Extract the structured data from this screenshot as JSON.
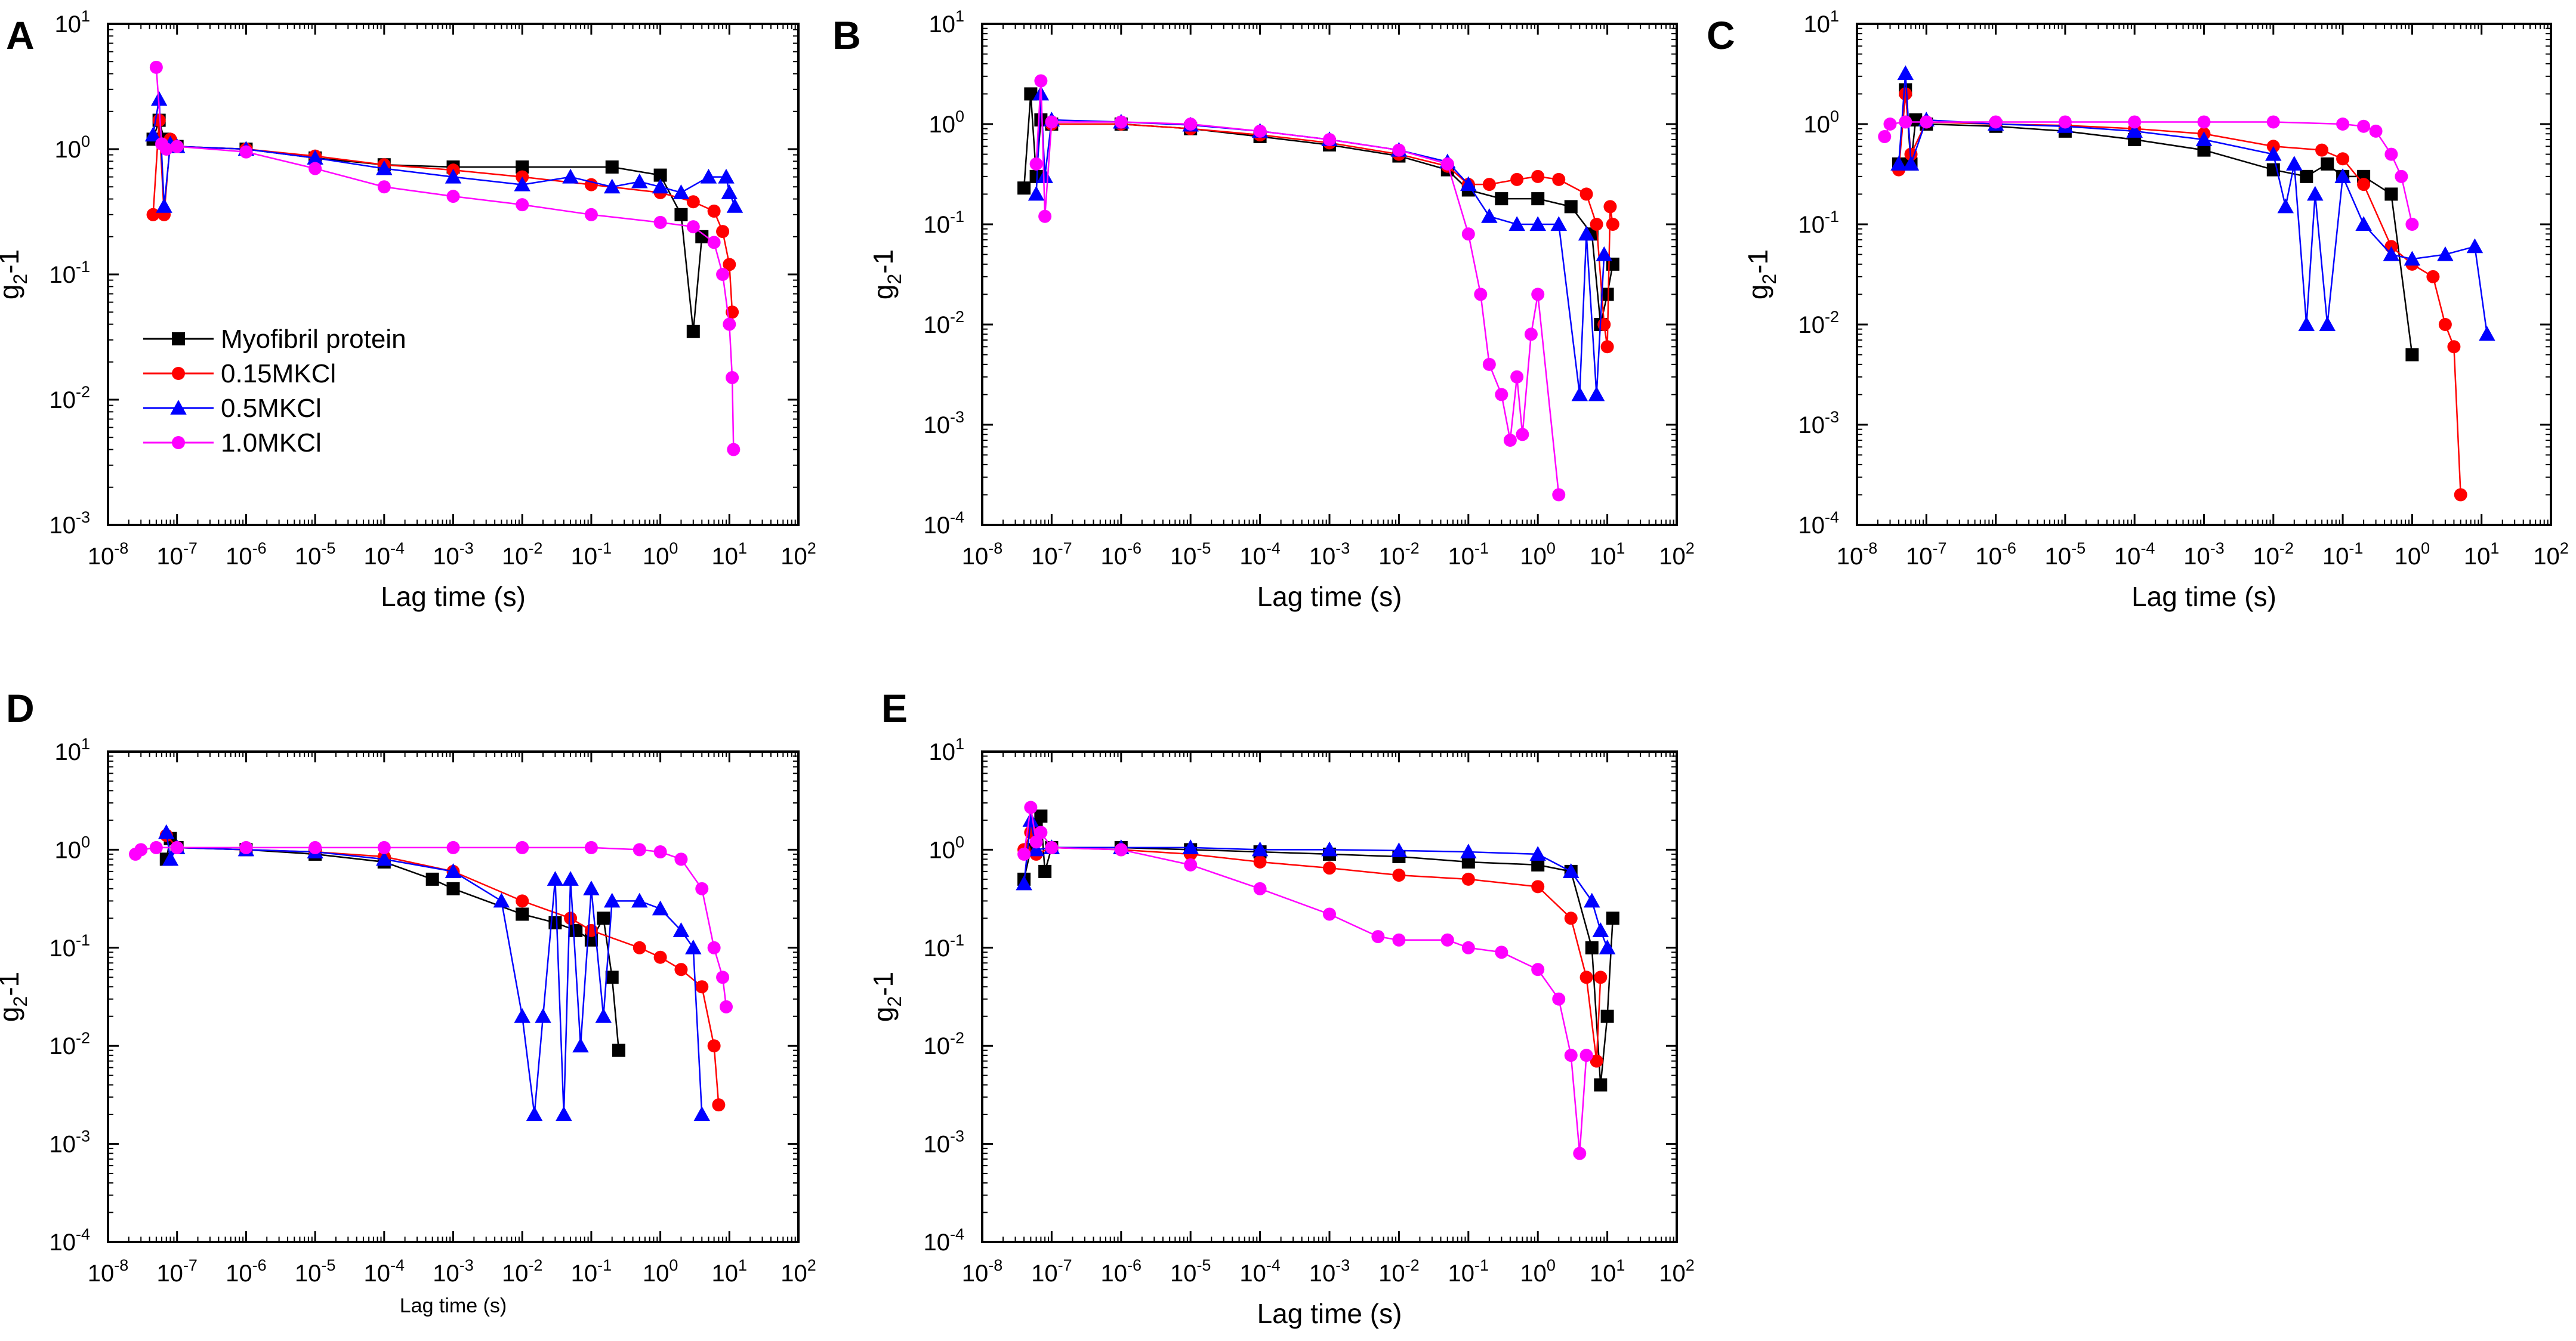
{
  "figure": {
    "panels": [
      "A",
      "B",
      "C",
      "D",
      "E"
    ]
  },
  "legend": {
    "entries": [
      {
        "name": "Myofibril protein",
        "color": "#000000",
        "marker": "square"
      },
      {
        "name": "0.15MKCl",
        "color": "#ff0000",
        "marker": "circle"
      },
      {
        "name": "0.5MKCl",
        "color": "#0000ff",
        "marker": "triangle"
      },
      {
        "name": "1.0MKCl",
        "color": "#ff00ff",
        "marker": "circle"
      }
    ]
  },
  "chart_data": [
    {
      "panel": "A",
      "type": "scatter",
      "xscale": "log",
      "yscale": "log",
      "xlabel": "Lag time (s)",
      "ylabel": "g2-1",
      "xlim": [
        1e-08,
        100
      ],
      "ylim": [
        0.001,
        10
      ],
      "xticks": [
        "10^-8",
        "10^-7",
        "10^-6",
        "10^-5",
        "10^-4",
        "10^-3",
        "10^-2",
        "10^-1",
        "10^0",
        "10^1",
        "10^2"
      ],
      "yticks": [
        "10^-3",
        "10^-2",
        "10^-1",
        "10^0",
        "10^1"
      ],
      "series": [
        {
          "name": "Myofibril protein",
          "color": "#000000",
          "marker": "square",
          "x": [
            4.5e-08,
            5.5e-08,
            6.5e-08,
            8e-08,
            1e-07,
            1e-06,
            1e-05,
            0.0001,
            0.001,
            0.01,
            0.2,
            1,
            2,
            3,
            4
          ],
          "y": [
            1.2,
            1.7,
            1.2,
            1.1,
            1.05,
            1.0,
            0.85,
            0.75,
            0.72,
            0.72,
            0.72,
            0.62,
            0.3,
            0.035,
            0.2
          ]
        },
        {
          "name": "0.15MKCl",
          "color": "#ff0000",
          "marker": "circle",
          "x": [
            4.5e-08,
            5.5e-08,
            6.5e-08,
            8e-08,
            1e-07,
            1e-06,
            1e-05,
            0.0001,
            0.001,
            0.01,
            0.1,
            1,
            3,
            6,
            8,
            10,
            11
          ],
          "y": [
            0.3,
            1.7,
            0.3,
            1.2,
            1.05,
            1.0,
            0.88,
            0.75,
            0.68,
            0.6,
            0.52,
            0.45,
            0.38,
            0.32,
            0.22,
            0.12,
            0.05
          ]
        },
        {
          "name": "0.5MKCl",
          "color": "#0000ff",
          "marker": "triangle",
          "x": [
            4.5e-08,
            5.5e-08,
            6.5e-08,
            8e-08,
            1e-07,
            1e-06,
            1e-05,
            0.0001,
            0.001,
            0.01,
            0.05,
            0.2,
            0.5,
            1,
            2,
            5,
            9,
            10,
            12
          ],
          "y": [
            1.3,
            2.5,
            0.35,
            1.1,
            1.05,
            1.0,
            0.85,
            0.7,
            0.6,
            0.52,
            0.6,
            0.5,
            0.55,
            0.5,
            0.45,
            0.6,
            0.6,
            0.45,
            0.35
          ]
        },
        {
          "name": "1.0MKCl",
          "color": "#ff00ff",
          "marker": "circle",
          "x": [
            5e-08,
            6e-08,
            7e-08,
            1e-07,
            1e-06,
            1e-05,
            0.0001,
            0.001,
            0.01,
            0.1,
            1,
            3,
            6,
            8,
            10,
            11,
            11.5
          ],
          "y": [
            4.5,
            1.1,
            1.0,
            1.05,
            0.95,
            0.7,
            0.5,
            0.42,
            0.36,
            0.3,
            0.26,
            0.24,
            0.18,
            0.1,
            0.04,
            0.015,
            0.004
          ]
        }
      ]
    },
    {
      "panel": "B",
      "type": "scatter",
      "xscale": "log",
      "yscale": "log",
      "xlabel": "Lag time (s)",
      "ylabel": "g2-1",
      "xlim": [
        1e-08,
        100
      ],
      "ylim": [
        0.0001,
        10
      ],
      "xticks": [
        "10^-8",
        "10^-7",
        "10^-6",
        "10^-5",
        "10^-4",
        "10^-3",
        "10^-2",
        "10^-1",
        "10^0",
        "10^1",
        "10^2"
      ],
      "yticks": [
        "10^-4",
        "10^-3",
        "10^-2",
        "10^-1",
        "10^0",
        "10^1"
      ],
      "series": [
        {
          "name": "Myofibril protein",
          "color": "#000000",
          "marker": "square",
          "x": [
            4e-08,
            5e-08,
            6e-08,
            7e-08,
            1e-07,
            1e-06,
            1e-05,
            0.0001,
            0.001,
            0.01,
            0.05,
            0.1,
            0.3,
            1,
            3,
            6,
            8,
            10,
            12
          ],
          "y": [
            0.23,
            2.0,
            0.3,
            1.1,
            1.0,
            1.0,
            0.9,
            0.75,
            0.62,
            0.48,
            0.35,
            0.22,
            0.18,
            0.18,
            0.15,
            0.08,
            0.01,
            0.02,
            0.04
          ]
        },
        {
          "name": "0.15MKCl",
          "color": "#ff0000",
          "marker": "circle",
          "x": [
            1e-07,
            1e-06,
            1e-05,
            0.0001,
            0.001,
            0.01,
            0.05,
            0.1,
            0.2,
            0.5,
            1,
            2,
            5,
            7,
            9,
            10,
            11,
            12
          ],
          "y": [
            1.0,
            1.0,
            0.9,
            0.78,
            0.65,
            0.5,
            0.38,
            0.25,
            0.25,
            0.28,
            0.3,
            0.28,
            0.2,
            0.1,
            0.01,
            0.006,
            0.15,
            0.1
          ]
        },
        {
          "name": "0.5MKCl",
          "color": "#0000ff",
          "marker": "triangle",
          "x": [
            6e-08,
            7e-08,
            8e-08,
            1e-07,
            1e-06,
            1e-05,
            0.0001,
            0.001,
            0.01,
            0.05,
            0.1,
            0.2,
            0.5,
            1,
            2,
            4,
            5,
            7,
            9
          ],
          "y": [
            0.2,
            2.0,
            0.3,
            1.1,
            1.05,
            0.98,
            0.85,
            0.7,
            0.55,
            0.42,
            0.25,
            0.12,
            0.1,
            0.1,
            0.1,
            0.002,
            0.08,
            0.002,
            0.05
          ]
        },
        {
          "name": "1.0MKCl",
          "color": "#ff00ff",
          "marker": "circle",
          "x": [
            6e-08,
            7e-08,
            8e-08,
            1e-07,
            1e-06,
            1e-05,
            0.0001,
            0.001,
            0.01,
            0.05,
            0.1,
            0.15,
            0.2,
            0.3,
            0.4,
            0.5,
            0.6,
            0.8,
            1,
            2
          ],
          "y": [
            0.4,
            2.7,
            0.12,
            1.05,
            1.05,
            1.0,
            0.85,
            0.7,
            0.55,
            0.4,
            0.08,
            0.02,
            0.004,
            0.002,
            0.0007,
            0.003,
            0.0008,
            0.008,
            0.02,
            0.0002
          ]
        }
      ]
    },
    {
      "panel": "C",
      "type": "scatter",
      "xscale": "log",
      "yscale": "log",
      "xlabel": "Lag time (s)",
      "ylabel": "g2-1",
      "xlim": [
        1e-08,
        100
      ],
      "ylim": [
        0.0001,
        10
      ],
      "xticks": [
        "10^-8",
        "10^-7",
        "10^-6",
        "10^-5",
        "10^-4",
        "10^-3",
        "10^-2",
        "10^-1",
        "10^0",
        "10^1",
        "10^2"
      ],
      "yticks": [
        "10^-4",
        "10^-3",
        "10^-2",
        "10^-1",
        "10^0",
        "10^1"
      ],
      "series": [
        {
          "name": "Myofibril protein",
          "color": "#000000",
          "marker": "square",
          "x": [
            4e-08,
            5e-08,
            6e-08,
            7e-08,
            1e-07,
            1e-06,
            1e-05,
            0.0001,
            0.001,
            0.01,
            0.03,
            0.06,
            0.1,
            0.2,
            0.5,
            1
          ],
          "y": [
            0.4,
            2.2,
            0.4,
            1.1,
            1.0,
            0.95,
            0.85,
            0.7,
            0.55,
            0.35,
            0.3,
            0.4,
            0.3,
            0.3,
            0.2,
            0.005
          ]
        },
        {
          "name": "0.15MKCl",
          "color": "#ff0000",
          "marker": "circle",
          "x": [
            4e-08,
            5e-08,
            6e-08,
            1e-07,
            1e-06,
            1e-05,
            0.0001,
            0.001,
            0.01,
            0.05,
            0.1,
            0.2,
            0.5,
            1,
            2,
            3,
            4,
            5
          ],
          "y": [
            0.35,
            2.0,
            0.5,
            1.05,
            1.0,
            0.97,
            0.9,
            0.8,
            0.6,
            0.55,
            0.45,
            0.25,
            0.06,
            0.04,
            0.03,
            0.01,
            0.006,
            0.0002
          ]
        },
        {
          "name": "0.5MKCl",
          "color": "#0000ff",
          "marker": "triangle",
          "x": [
            4e-08,
            5e-08,
            6e-08,
            1e-07,
            1e-06,
            1e-05,
            0.0001,
            0.001,
            0.01,
            0.015,
            0.02,
            0.03,
            0.04,
            0.06,
            0.1,
            0.2,
            0.5,
            1,
            3,
            8,
            12
          ],
          "y": [
            0.4,
            3.2,
            0.4,
            1.1,
            1.0,
            0.95,
            0.85,
            0.7,
            0.5,
            0.15,
            0.4,
            0.01,
            0.2,
            0.01,
            0.3,
            0.1,
            0.05,
            0.045,
            0.05,
            0.06,
            0.008
          ]
        },
        {
          "name": "1.0MKCl",
          "color": "#ff00ff",
          "marker": "circle",
          "x": [
            2.5e-08,
            3e-08,
            5e-08,
            1e-07,
            1e-06,
            1e-05,
            0.0001,
            0.001,
            0.01,
            0.1,
            0.2,
            0.3,
            0.5,
            0.7,
            1
          ],
          "y": [
            0.75,
            1.0,
            1.05,
            1.05,
            1.05,
            1.05,
            1.05,
            1.05,
            1.05,
            1.0,
            0.95,
            0.85,
            0.5,
            0.3,
            0.1
          ]
        }
      ]
    },
    {
      "panel": "D",
      "type": "scatter",
      "xscale": "log",
      "yscale": "log",
      "xlabel": "Lag time (s)",
      "ylabel": "g2-1",
      "xlim": [
        1e-08,
        100
      ],
      "ylim": [
        0.0001,
        10
      ],
      "xticks": [
        "10^-8",
        "10^-7",
        "10^-6",
        "10^-5",
        "10^-4",
        "10^-3",
        "10^-2",
        "10^-1",
        "10^0",
        "10^1",
        "10^2"
      ],
      "yticks": [
        "10^-4",
        "10^-3",
        "10^-2",
        "10^-1",
        "10^0",
        "10^1"
      ],
      "series": [
        {
          "name": "Myofibril protein",
          "color": "#000000",
          "marker": "square",
          "x": [
            7e-08,
            8e-08,
            1e-07,
            1e-06,
            1e-05,
            0.0001,
            0.0005,
            0.001,
            0.01,
            0.03,
            0.06,
            0.1,
            0.15,
            0.2,
            0.25
          ],
          "y": [
            0.8,
            1.3,
            1.05,
            1.0,
            0.9,
            0.75,
            0.5,
            0.4,
            0.22,
            0.18,
            0.15,
            0.12,
            0.2,
            0.05,
            0.009
          ]
        },
        {
          "name": "0.15MKCl",
          "color": "#ff0000",
          "marker": "circle",
          "x": [
            7e-08,
            1e-07,
            1e-06,
            1e-05,
            0.0001,
            0.001,
            0.01,
            0.05,
            0.1,
            0.5,
            1,
            2,
            4,
            6,
            7
          ],
          "y": [
            1.4,
            1.05,
            1.0,
            0.95,
            0.85,
            0.6,
            0.3,
            0.2,
            0.15,
            0.1,
            0.08,
            0.06,
            0.04,
            0.01,
            0.0025
          ]
        },
        {
          "name": "0.5MKCl",
          "color": "#0000ff",
          "marker": "triangle",
          "x": [
            7e-08,
            8e-08,
            1e-07,
            1e-06,
            1e-05,
            0.0001,
            0.001,
            0.005,
            0.01,
            0.015,
            0.02,
            0.03,
            0.04,
            0.05,
            0.07,
            0.1,
            0.15,
            0.2,
            0.5,
            1,
            2,
            3,
            4
          ],
          "y": [
            1.5,
            0.8,
            1.05,
            1.0,
            0.95,
            0.8,
            0.6,
            0.3,
            0.02,
            0.002,
            0.02,
            0.5,
            0.002,
            0.5,
            0.01,
            0.4,
            0.02,
            0.3,
            0.3,
            0.25,
            0.15,
            0.1,
            0.002
          ]
        },
        {
          "name": "1.0MKCl",
          "color": "#ff00ff",
          "marker": "circle",
          "x": [
            2.5e-08,
            3e-08,
            5e-08,
            1e-07,
            1e-06,
            1e-05,
            0.0001,
            0.001,
            0.01,
            0.1,
            0.5,
            1,
            2,
            4,
            6,
            8,
            9
          ],
          "y": [
            0.9,
            1.0,
            1.05,
            1.05,
            1.05,
            1.05,
            1.05,
            1.05,
            1.05,
            1.05,
            1.0,
            0.95,
            0.8,
            0.4,
            0.1,
            0.05,
            0.025
          ]
        }
      ]
    },
    {
      "panel": "E",
      "type": "scatter",
      "xscale": "log",
      "yscale": "log",
      "xlabel": "Lag time (s)",
      "ylabel": "g2-1",
      "xlim": [
        1e-08,
        100
      ],
      "ylim": [
        0.0001,
        10
      ],
      "xticks": [
        "10^-8",
        "10^-7",
        "10^-6",
        "10^-5",
        "10^-4",
        "10^-3",
        "10^-2",
        "10^-1",
        "10^0",
        "10^1",
        "10^2"
      ],
      "yticks": [
        "10^-4",
        "10^-3",
        "10^-2",
        "10^-1",
        "10^0",
        "10^1"
      ],
      "series": [
        {
          "name": "Myofibril protein",
          "color": "#000000",
          "marker": "square",
          "x": [
            4e-08,
            5e-08,
            6e-08,
            7e-08,
            8e-08,
            1e-07,
            1e-06,
            1e-05,
            0.0001,
            0.001,
            0.01,
            0.1,
            1,
            3,
            6,
            8,
            10,
            12
          ],
          "y": [
            0.5,
            1.0,
            1.8,
            2.2,
            0.6,
            1.05,
            1.05,
            1.0,
            0.95,
            0.9,
            0.85,
            0.75,
            0.7,
            0.6,
            0.1,
            0.004,
            0.02,
            0.2
          ]
        },
        {
          "name": "0.15MKCl",
          "color": "#ff0000",
          "marker": "circle",
          "x": [
            4e-08,
            5e-08,
            6e-08,
            1e-07,
            1e-06,
            1e-05,
            0.0001,
            0.001,
            0.01,
            0.1,
            1,
            3,
            5,
            7,
            8
          ],
          "y": [
            1.0,
            1.5,
            0.9,
            1.05,
            1.0,
            0.9,
            0.75,
            0.65,
            0.55,
            0.5,
            0.42,
            0.2,
            0.05,
            0.007,
            0.05
          ]
        },
        {
          "name": "0.5MKCl",
          "color": "#0000ff",
          "marker": "triangle",
          "x": [
            4e-08,
            5e-08,
            6e-08,
            1e-07,
            1e-06,
            1e-05,
            0.0001,
            0.001,
            0.01,
            0.1,
            1,
            3,
            6,
            8,
            10
          ],
          "y": [
            0.45,
            2.0,
            1.0,
            1.05,
            1.05,
            1.05,
            1.0,
            1.0,
            0.98,
            0.95,
            0.9,
            0.6,
            0.3,
            0.15,
            0.1
          ]
        },
        {
          "name": "1.0MKCl",
          "color": "#ff00ff",
          "marker": "circle",
          "x": [
            4e-08,
            5e-08,
            6e-08,
            7e-08,
            1e-07,
            1e-06,
            1e-05,
            0.0001,
            0.001,
            0.005,
            0.01,
            0.05,
            0.1,
            0.3,
            1,
            2,
            3,
            4,
            5
          ],
          "y": [
            0.9,
            2.7,
            1.2,
            1.5,
            1.05,
            1.0,
            0.7,
            0.4,
            0.22,
            0.13,
            0.12,
            0.12,
            0.1,
            0.09,
            0.06,
            0.03,
            0.008,
            0.0008,
            0.008
          ]
        }
      ]
    }
  ]
}
